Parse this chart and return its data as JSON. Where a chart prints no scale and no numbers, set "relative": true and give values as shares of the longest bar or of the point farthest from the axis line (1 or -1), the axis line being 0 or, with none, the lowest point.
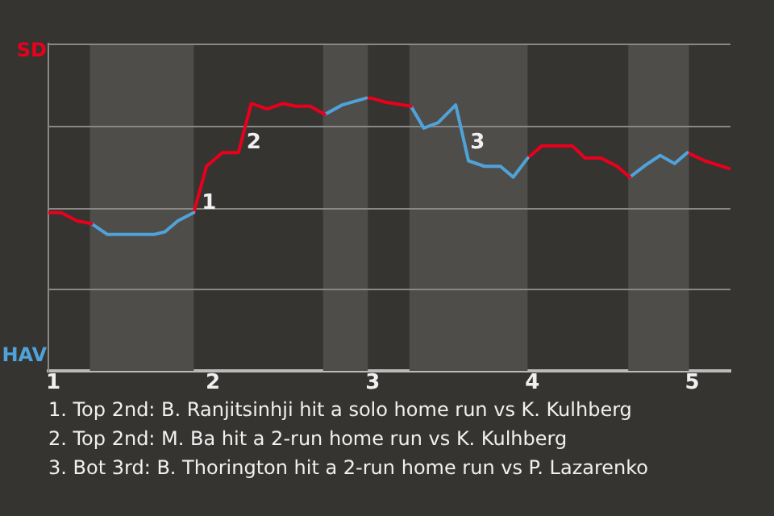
{
  "chart_data": {
    "type": "line",
    "relative": true,
    "series": [
      {
        "color": "#e8001c",
        "x": [
          0.97,
          1.05,
          1.15,
          1.24
        ],
        "values": [
          0.58,
          0.58,
          0.55,
          0.54
        ]
      },
      {
        "color": "#4fa3d9",
        "x": [
          1.24,
          1.34,
          1.63,
          1.7,
          1.78,
          1.88
        ],
        "values": [
          0.54,
          0.5,
          0.5,
          0.51,
          0.55,
          0.58
        ]
      },
      {
        "color": "#e8001c",
        "x": [
          1.88,
          1.96,
          2.06,
          2.16,
          2.24,
          2.34,
          2.44,
          2.52,
          2.61,
          2.7
        ],
        "values": [
          0.58,
          0.75,
          0.8,
          0.8,
          0.98,
          0.96,
          0.98,
          0.97,
          0.97,
          0.94
        ]
      },
      {
        "color": "#4fa3d9",
        "x": [
          2.7,
          2.81,
          2.96
        ],
        "values": [
          0.94,
          0.975,
          1
        ]
      },
      {
        "color": "#e8001c",
        "x": [
          2.96,
          2.99,
          3.08,
          3.24
        ],
        "values": [
          1,
          1,
          0.985,
          0.97
        ]
      },
      {
        "color": "#4fa3d9",
        "x": [
          3.24,
          3.32,
          3.41,
          3.52,
          3.6,
          3.7,
          3.8,
          3.88,
          3.97
        ],
        "values": [
          0.97,
          0.89,
          0.91,
          0.975,
          0.77,
          0.75,
          0.75,
          0.71,
          0.78
        ]
      },
      {
        "color": "#e8001c",
        "x": [
          3.97,
          4.06,
          4.25,
          4.33,
          4.43,
          4.53,
          4.61
        ],
        "values": [
          0.78,
          0.825,
          0.825,
          0.78,
          0.78,
          0.75,
          0.71
        ]
      },
      {
        "color": "#4fa3d9",
        "x": [
          4.61,
          4.71,
          4.8,
          4.89,
          4.97
        ],
        "values": [
          0.71,
          0.755,
          0.79,
          0.76,
          0.8
        ]
      },
      {
        "color": "#e8001c",
        "x": [
          4.97,
          5.08,
          5.24
        ],
        "values": [
          0.8,
          0.77,
          0.74
        ]
      }
    ],
    "xlim": [
      0.97,
      5.24
    ],
    "xticks": [
      1,
      2,
      3,
      4,
      5
    ],
    "grid": "y",
    "legend": false,
    "marker": "none",
    "line_style": "solid",
    "bands": [
      {
        "axis": "x",
        "from": 1.23,
        "to": 1.88,
        "color": "#4f4d4a"
      },
      {
        "axis": "x",
        "from": 2.69,
        "to": 2.97,
        "color": "#4f4d4a"
      },
      {
        "axis": "x",
        "from": 3.23,
        "to": 3.97,
        "color": "#4f4d4a"
      },
      {
        "axis": "x",
        "from": 4.6,
        "to": 4.98,
        "color": "#4f4d4a"
      }
    ],
    "annotations": [
      "SD",
      "HAV",
      {
        "text": "1",
        "x": 1.88,
        "y": 0.58
      },
      {
        "text": "2",
        "x": 2.16,
        "y": 0.8
      },
      {
        "text": "3",
        "x": 3.56,
        "y": 0.8
      },
      "1. Top 2nd: B. Ranjitsinhji hit a solo home run vs K. Kulhberg",
      "2. Top 2nd: M. Ba hit a 2-run home run vs K. Kulhberg",
      "3. Bot 3rd: B. Thorington hit a 2-run home run vs P. Lazarenko"
    ]
  }
}
